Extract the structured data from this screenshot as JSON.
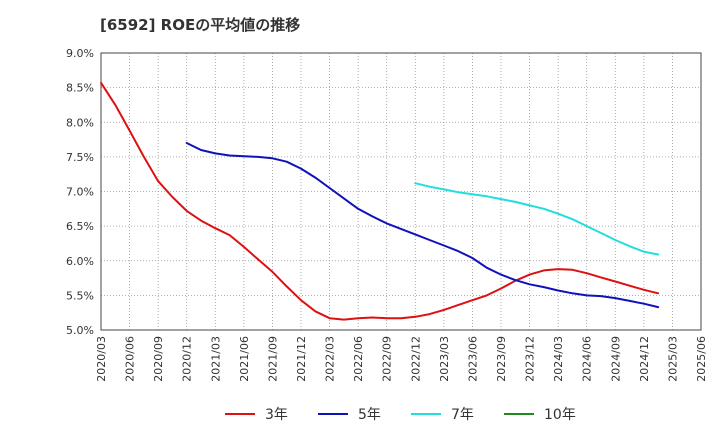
{
  "chart_data": {
    "type": "line",
    "title": "[6592]  ROEの平均値の推移",
    "xlabel": "",
    "ylabel": "",
    "ylim": [
      5.0,
      9.0
    ],
    "y_ticks": [
      "5.0%",
      "5.5%",
      "6.0%",
      "6.5%",
      "7.0%",
      "7.5%",
      "8.0%",
      "8.5%",
      "9.0%"
    ],
    "y_tick_values": [
      5.0,
      5.5,
      6.0,
      6.5,
      7.0,
      7.5,
      8.0,
      8.5,
      9.0
    ],
    "x_ticks": [
      "2020/03",
      "2020/06",
      "2020/09",
      "2020/12",
      "2021/03",
      "2021/06",
      "2021/09",
      "2021/12",
      "2022/03",
      "2022/06",
      "2022/09",
      "2022/12",
      "2023/03",
      "2023/06",
      "2023/09",
      "2023/12",
      "2024/03",
      "2024/06",
      "2024/09",
      "2024/12",
      "2025/03",
      "2025/06"
    ],
    "grid": true,
    "series": [
      {
        "name": "3年",
        "color": "#dd1111",
        "points": [
          [
            0,
            8.57
          ],
          [
            0.5,
            8.25
          ],
          [
            1,
            7.88
          ],
          [
            1.5,
            7.5
          ],
          [
            2,
            7.15
          ],
          [
            2.5,
            6.92
          ],
          [
            3,
            6.72
          ],
          [
            3.5,
            6.58
          ],
          [
            4,
            6.47
          ],
          [
            4.5,
            6.37
          ],
          [
            5,
            6.2
          ],
          [
            5.5,
            6.02
          ],
          [
            6,
            5.84
          ],
          [
            6.5,
            5.63
          ],
          [
            7,
            5.43
          ],
          [
            7.5,
            5.27
          ],
          [
            8,
            5.17
          ],
          [
            8.5,
            5.15
          ],
          [
            9,
            5.17
          ],
          [
            9.5,
            5.18
          ],
          [
            10,
            5.17
          ],
          [
            10.5,
            5.17
          ],
          [
            11,
            5.19
          ],
          [
            11.5,
            5.23
          ],
          [
            12,
            5.29
          ],
          [
            12.5,
            5.36
          ],
          [
            13,
            5.43
          ],
          [
            13.5,
            5.5
          ],
          [
            14,
            5.6
          ],
          [
            14.5,
            5.71
          ],
          [
            15,
            5.8
          ],
          [
            15.5,
            5.86
          ],
          [
            16,
            5.88
          ],
          [
            16.5,
            5.87
          ],
          [
            17,
            5.82
          ],
          [
            17.5,
            5.76
          ],
          [
            18,
            5.7
          ],
          [
            18.5,
            5.64
          ],
          [
            19,
            5.58
          ],
          [
            19.5,
            5.53
          ]
        ]
      },
      {
        "name": "5年",
        "color": "#1111bb",
        "points": [
          [
            3,
            7.7
          ],
          [
            3.5,
            7.6
          ],
          [
            4,
            7.55
          ],
          [
            4.5,
            7.52
          ],
          [
            5,
            7.51
          ],
          [
            5.5,
            7.5
          ],
          [
            6,
            7.48
          ],
          [
            6.5,
            7.43
          ],
          [
            7,
            7.33
          ],
          [
            7.5,
            7.2
          ],
          [
            8,
            7.05
          ],
          [
            8.5,
            6.9
          ],
          [
            9,
            6.75
          ],
          [
            9.5,
            6.64
          ],
          [
            10,
            6.54
          ],
          [
            10.5,
            6.46
          ],
          [
            11,
            6.38
          ],
          [
            11.5,
            6.3
          ],
          [
            12,
            6.22
          ],
          [
            12.5,
            6.14
          ],
          [
            13,
            6.04
          ],
          [
            13.5,
            5.9
          ],
          [
            14,
            5.8
          ],
          [
            14.5,
            5.72
          ],
          [
            15,
            5.66
          ],
          [
            15.5,
            5.62
          ],
          [
            16,
            5.57
          ],
          [
            16.5,
            5.53
          ],
          [
            17,
            5.5
          ],
          [
            17.5,
            5.49
          ],
          [
            18,
            5.46
          ],
          [
            18.5,
            5.42
          ],
          [
            19,
            5.38
          ],
          [
            19.5,
            5.33
          ]
        ]
      },
      {
        "name": "7年",
        "color": "#22dddd",
        "points": [
          [
            11,
            7.12
          ],
          [
            11.5,
            7.07
          ],
          [
            12,
            7.03
          ],
          [
            12.5,
            6.99
          ],
          [
            13,
            6.96
          ],
          [
            13.5,
            6.93
          ],
          [
            14,
            6.89
          ],
          [
            14.5,
            6.85
          ],
          [
            15,
            6.8
          ],
          [
            15.5,
            6.75
          ],
          [
            16,
            6.68
          ],
          [
            16.5,
            6.6
          ],
          [
            17,
            6.5
          ],
          [
            17.5,
            6.4
          ],
          [
            18,
            6.3
          ],
          [
            18.5,
            6.21
          ],
          [
            19,
            6.13
          ],
          [
            19.5,
            6.09
          ]
        ]
      },
      {
        "name": "10年",
        "color": "#228822",
        "points": []
      }
    ]
  }
}
